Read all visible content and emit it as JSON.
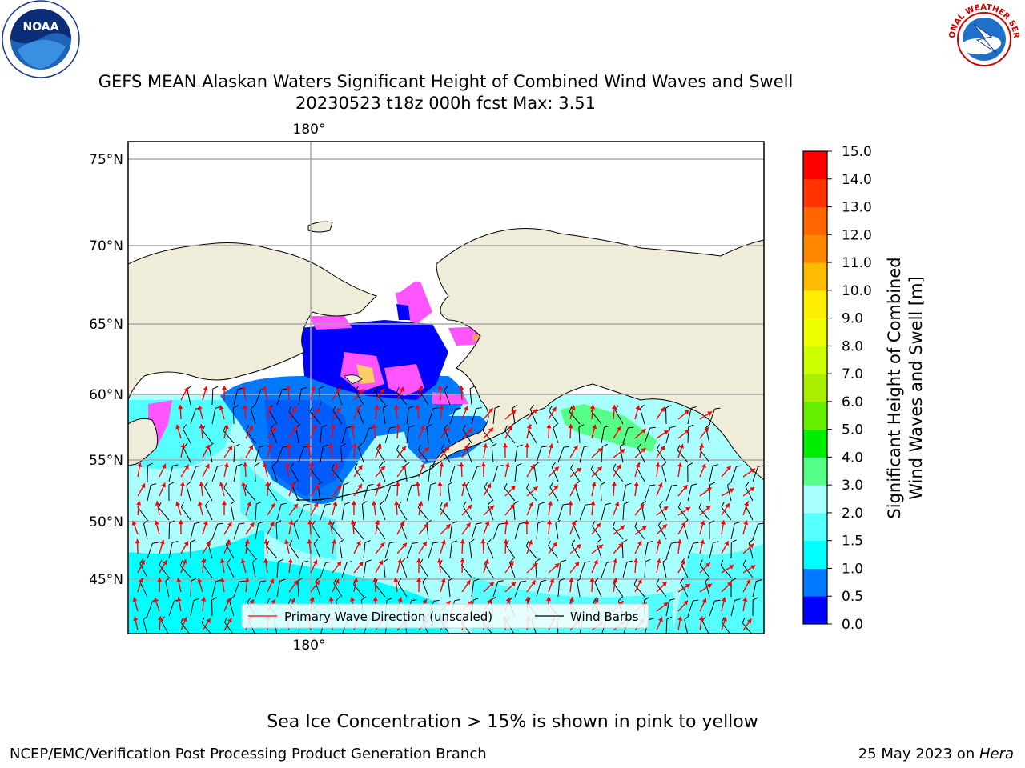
{
  "header": {
    "title_line1": "GEFS MEAN Alaskan Waters Significant Height of Combined Wind Waves and Swell",
    "title_line2": "20230523 t18z 000h fcst   Max: 3.51",
    "left_logo_text": "NOAA",
    "right_logo_text": "NATIONAL WEATHER SERVICE"
  },
  "map": {
    "lat_labels": [
      "75°N",
      "70°N",
      "65°N",
      "60°N",
      "55°N",
      "50°N",
      "45°N"
    ],
    "lon_label_top": "180°",
    "lon_label_bottom": "180°",
    "legend": {
      "wave_label": "Primary Wave Direction (unscaled)",
      "wind_label": "Wind Barbs"
    },
    "colors": {
      "land": "#efecd9",
      "ocean_low": "#00ffff",
      "ice": "#ff55ff",
      "arrow": "#ff0000",
      "barb": "#000000"
    }
  },
  "colorbar": {
    "label_line1": "Significant Height of Combined",
    "label_line2": "Wind Waves and Swell [m]",
    "ticks": [
      "0.0",
      "0.5",
      "1.0",
      "1.5",
      "2.0",
      "3.0",
      "4.0",
      "5.0",
      "6.0",
      "7.0",
      "8.0",
      "9.0",
      "10.0",
      "11.0",
      "12.0",
      "13.0",
      "14.0",
      "15.0"
    ],
    "colors": [
      "#0000ff",
      "#0078ff",
      "#00ffff",
      "#55ffff",
      "#aaffff",
      "#55ff88",
      "#00ee00",
      "#66ee00",
      "#aaee00",
      "#ccff00",
      "#eeff00",
      "#ffee00",
      "#ffbb00",
      "#ff8800",
      "#ff6600",
      "#ff3300",
      "#ff0000"
    ]
  },
  "footer": {
    "note": "Sea Ice Concentration > 15% is shown in pink to yellow",
    "left": "NCEP/EMC/Verification Post Processing Product Generation Branch",
    "right_prefix": "25 May 2023 on ",
    "right_host": "Hera"
  }
}
